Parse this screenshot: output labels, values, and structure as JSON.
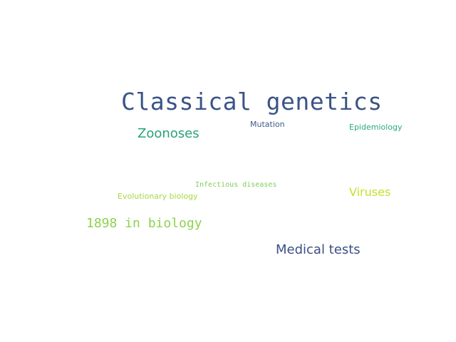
{
  "word_cloud": {
    "words": [
      {
        "text": "Classical genetics",
        "color": "#3b5487"
      },
      {
        "text": "Zoonoses",
        "color": "#2aa27a"
      },
      {
        "text": "Mutation",
        "color": "#3e5a8c"
      },
      {
        "text": "Epidemiology",
        "color": "#29a97d"
      },
      {
        "text": "Infectious diseases",
        "color": "#7fcf58"
      },
      {
        "text": "Evolutionary biology",
        "color": "#a7d840"
      },
      {
        "text": "Viruses",
        "color": "#c5e02d"
      },
      {
        "text": "1898 in biology",
        "color": "#8ed24f"
      },
      {
        "text": "Medical tests",
        "color": "#3c4f86"
      }
    ]
  }
}
